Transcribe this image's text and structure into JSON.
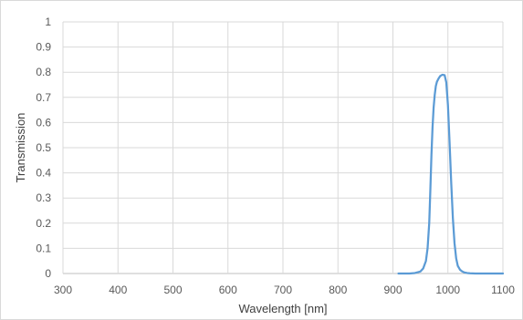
{
  "chart_data": {
    "type": "line",
    "title": "",
    "xlabel": "Wavelength [nm]",
    "ylabel": "Transmission",
    "xlim": [
      300,
      1100
    ],
    "ylim": [
      0,
      1
    ],
    "xticks": [
      "300",
      "400",
      "500",
      "600",
      "700",
      "800",
      "900",
      "1000",
      "1100"
    ],
    "yticks": [
      "0",
      "0.1",
      "0.2",
      "0.3",
      "0.4",
      "0.5",
      "0.6",
      "0.7",
      "0.8",
      "0.9",
      "1"
    ],
    "grid": true,
    "legend": "none",
    "line_color": "#5b9bd5",
    "grid_color": "#d9d9d9",
    "series": [
      {
        "x": [
          910,
          930,
          940,
          950,
          955,
          960,
          963,
          966,
          968,
          970,
          972,
          974,
          976,
          978,
          980,
          983,
          986,
          990,
          994,
          997,
          1000,
          1003,
          1006,
          1009,
          1012,
          1015,
          1018,
          1022,
          1026,
          1030,
          1035,
          1040,
          1050,
          1060,
          1075,
          1100
        ],
        "y": [
          0,
          0,
          0.002,
          0.008,
          0.02,
          0.05,
          0.1,
          0.2,
          0.33,
          0.47,
          0.58,
          0.66,
          0.71,
          0.745,
          0.762,
          0.775,
          0.785,
          0.79,
          0.788,
          0.76,
          0.67,
          0.52,
          0.36,
          0.22,
          0.12,
          0.06,
          0.03,
          0.015,
          0.008,
          0.004,
          0.002,
          0.001,
          0,
          0,
          0,
          0
        ]
      }
    ]
  }
}
